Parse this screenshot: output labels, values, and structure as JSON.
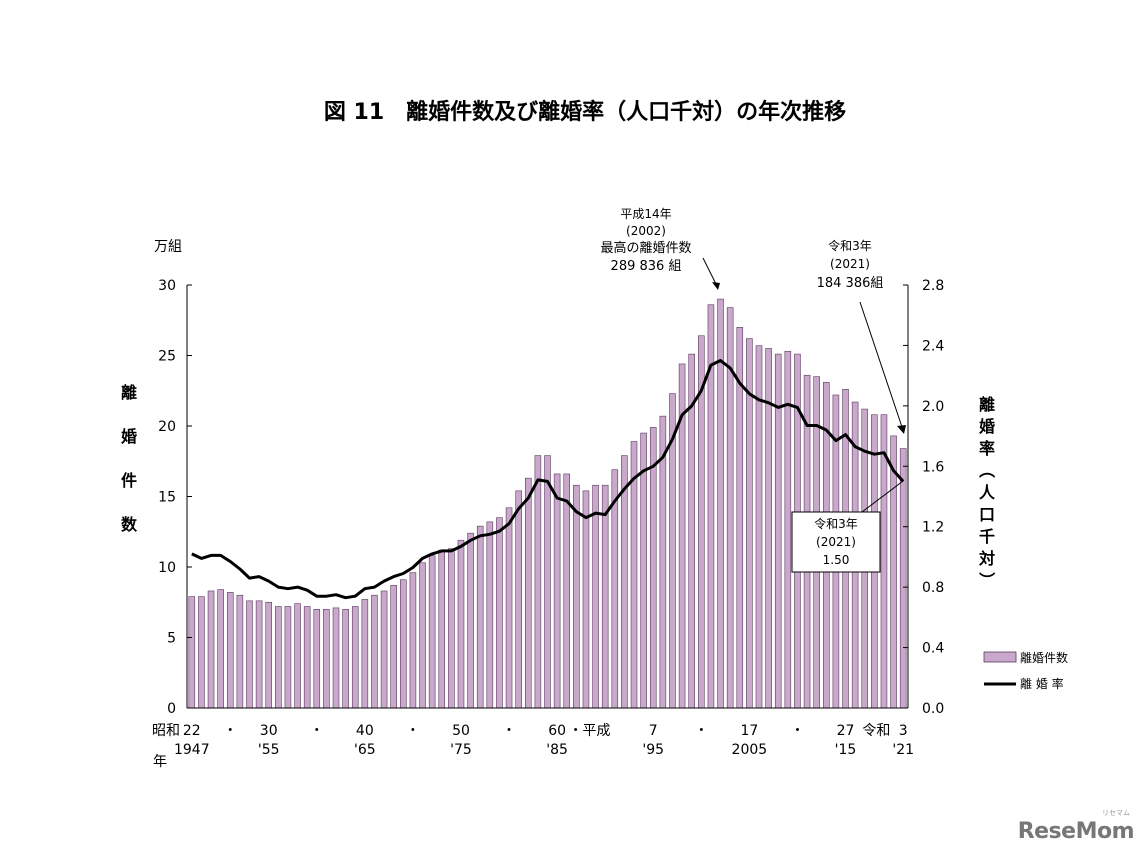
{
  "chart_data": {
    "type": "bar",
    "title": "図 11　離婚件数及び離婚率（人口千対）の年次推移",
    "left_unit": "万組",
    "left_axis_label": "離婚件数",
    "right_axis_label": "離婚率（人口千対）",
    "ylim_left": [
      0,
      30
    ],
    "ylim_right": [
      0.0,
      2.8
    ],
    "yticks_left": [
      "0",
      "5",
      "10",
      "15",
      "20",
      "25",
      "30"
    ],
    "yticks_right": [
      "0.0",
      "0.4",
      "0.8",
      "1.2",
      "1.6",
      "2.0",
      "2.4",
      "2.8"
    ],
    "x_era_labels": {
      "showa": "昭和",
      "heisei": "・平成",
      "reiwa": "令和",
      "year_char": "年"
    },
    "x_tick_top": [
      "22",
      "・",
      "30",
      "・",
      "40",
      "・",
      "50",
      "・",
      "60",
      "7",
      "・",
      "17",
      "・",
      "27",
      "3"
    ],
    "x_tick_bottom": [
      "1947",
      "'55",
      "'65",
      "'75",
      "'85",
      "'95",
      "2005",
      "'15",
      "'21"
    ],
    "series": [
      {
        "name": "離婚件数",
        "type": "bar",
        "axis": "left",
        "color": "#c9a8cc",
        "years": [
          1947,
          1948,
          1949,
          1950,
          1951,
          1952,
          1953,
          1954,
          1955,
          1956,
          1957,
          1958,
          1959,
          1960,
          1961,
          1962,
          1963,
          1964,
          1965,
          1966,
          1967,
          1968,
          1969,
          1970,
          1971,
          1972,
          1973,
          1974,
          1975,
          1976,
          1977,
          1978,
          1979,
          1980,
          1981,
          1982,
          1983,
          1984,
          1985,
          1986,
          1987,
          1988,
          1989,
          1990,
          1991,
          1992,
          1993,
          1994,
          1995,
          1996,
          1997,
          1998,
          1999,
          2000,
          2001,
          2002,
          2003,
          2004,
          2005,
          2006,
          2007,
          2008,
          2009,
          2010,
          2011,
          2012,
          2013,
          2014,
          2015,
          2016,
          2017,
          2018,
          2019,
          2020,
          2021
        ],
        "values": [
          7.9,
          7.9,
          8.3,
          8.4,
          8.2,
          8.0,
          7.6,
          7.6,
          7.5,
          7.2,
          7.2,
          7.4,
          7.2,
          7.0,
          7.0,
          7.1,
          7.0,
          7.2,
          7.7,
          8.0,
          8.3,
          8.7,
          9.1,
          9.6,
          10.3,
          10.8,
          11.2,
          11.3,
          11.9,
          12.4,
          12.9,
          13.2,
          13.5,
          14.2,
          15.4,
          16.3,
          17.9,
          17.9,
          16.6,
          16.6,
          15.8,
          15.4,
          15.8,
          15.8,
          16.9,
          17.9,
          18.9,
          19.5,
          19.9,
          20.7,
          22.3,
          24.4,
          25.1,
          26.4,
          28.6,
          29.0,
          28.4,
          27.0,
          26.2,
          25.7,
          25.5,
          25.1,
          25.3,
          25.1,
          23.6,
          23.5,
          23.1,
          22.2,
          22.6,
          21.7,
          21.2,
          20.8,
          20.8,
          19.3,
          18.4
        ]
      },
      {
        "name": "離 婚 率",
        "type": "line",
        "axis": "right",
        "color": "#000000",
        "years": [
          1947,
          1948,
          1949,
          1950,
          1951,
          1952,
          1953,
          1954,
          1955,
          1956,
          1957,
          1958,
          1959,
          1960,
          1961,
          1962,
          1963,
          1964,
          1965,
          1966,
          1967,
          1968,
          1969,
          1970,
          1971,
          1972,
          1973,
          1974,
          1975,
          1976,
          1977,
          1978,
          1979,
          1980,
          1981,
          1982,
          1983,
          1984,
          1985,
          1986,
          1987,
          1988,
          1989,
          1990,
          1991,
          1992,
          1993,
          1994,
          1995,
          1996,
          1997,
          1998,
          1999,
          2000,
          2001,
          2002,
          2003,
          2004,
          2005,
          2006,
          2007,
          2008,
          2009,
          2010,
          2011,
          2012,
          2013,
          2014,
          2015,
          2016,
          2017,
          2018,
          2019,
          2020,
          2021
        ],
        "values": [
          1.02,
          0.99,
          1.01,
          1.01,
          0.97,
          0.92,
          0.86,
          0.87,
          0.84,
          0.8,
          0.79,
          0.8,
          0.78,
          0.74,
          0.74,
          0.75,
          0.73,
          0.74,
          0.79,
          0.8,
          0.84,
          0.87,
          0.89,
          0.93,
          0.99,
          1.02,
          1.04,
          1.04,
          1.07,
          1.11,
          1.14,
          1.15,
          1.17,
          1.22,
          1.32,
          1.39,
          1.51,
          1.5,
          1.39,
          1.37,
          1.3,
          1.26,
          1.29,
          1.28,
          1.37,
          1.45,
          1.52,
          1.57,
          1.6,
          1.66,
          1.78,
          1.94,
          2.0,
          2.1,
          2.27,
          2.3,
          2.25,
          2.15,
          2.08,
          2.04,
          2.02,
          1.99,
          2.01,
          1.99,
          1.87,
          1.87,
          1.84,
          1.77,
          1.81,
          1.73,
          1.7,
          1.68,
          1.69,
          1.57,
          1.5
        ]
      }
    ],
    "annotations": {
      "peak_era": "平成14年",
      "peak_year": "(2002)",
      "peak_text1": "最高の離婚件数",
      "peak_text2": "289 836 組",
      "latest_era": "令和3年",
      "latest_year": "(2021)",
      "latest_count": "184 386組",
      "rate_era": "令和3年",
      "rate_year": "(2021)",
      "rate_value": "1.50"
    },
    "legend": {
      "placement": "right",
      "bar_label": "離婚件数",
      "line_label": "離 婚 率"
    }
  },
  "watermark": {
    "text": "ReseMom",
    "sub": "リセマム"
  }
}
